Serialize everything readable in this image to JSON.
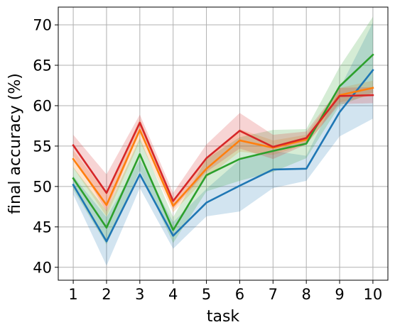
{
  "chart_data": {
    "type": "line",
    "title": "",
    "xlabel": "task",
    "ylabel": "final accuracy (%)",
    "x": [
      1,
      2,
      3,
      4,
      5,
      6,
      7,
      8,
      9,
      10
    ],
    "xlim": [
      0.55,
      10.45
    ],
    "ylim": [
      38.4,
      72.2
    ],
    "xticks": [
      "1",
      "2",
      "3",
      "4",
      "5",
      "6",
      "7",
      "8",
      "9",
      "10"
    ],
    "yticks": [
      40,
      45,
      50,
      55,
      60,
      65,
      70
    ],
    "grid": true,
    "legend": "none",
    "series": [
      {
        "color": "#1f77b4",
        "values": [
          50.2,
          43.2,
          51.5,
          43.9,
          48.0,
          50.1,
          52.1,
          52.2,
          59.2,
          64.4
        ],
        "lower": [
          49.0,
          40.2,
          49.8,
          42.3,
          46.3,
          46.9,
          49.8,
          50.7,
          56.2,
          58.4
        ],
        "upper": [
          51.3,
          46.2,
          53.3,
          45.6,
          49.7,
          53.3,
          54.4,
          53.8,
          62.1,
          70.3
        ]
      },
      {
        "color": "#ff7f0e",
        "values": [
          53.4,
          47.7,
          57.0,
          47.6,
          52.2,
          55.7,
          54.8,
          55.8,
          61.3,
          62.2
        ],
        "lower": [
          52.3,
          46.3,
          55.6,
          46.8,
          51.1,
          54.3,
          53.9,
          55.2,
          60.4,
          61.3
        ],
        "upper": [
          54.5,
          49.1,
          58.4,
          48.4,
          53.3,
          57.1,
          55.7,
          56.4,
          62.2,
          63.1
        ]
      },
      {
        "color": "#2ca02c",
        "values": [
          51.0,
          44.9,
          54.0,
          44.6,
          51.4,
          53.4,
          54.4,
          55.3,
          62.4,
          66.3
        ],
        "lower": [
          49.6,
          42.8,
          52.0,
          43.0,
          49.4,
          50.7,
          51.8,
          53.5,
          60.0,
          61.6
        ],
        "upper": [
          52.4,
          47.0,
          56.0,
          46.2,
          53.4,
          56.1,
          57.0,
          57.1,
          64.8,
          71.0
        ]
      },
      {
        "color": "#d62728",
        "values": [
          55.1,
          49.2,
          57.9,
          48.2,
          53.5,
          56.9,
          54.9,
          56.0,
          61.2,
          61.3
        ],
        "lower": [
          53.8,
          46.9,
          56.9,
          47.2,
          51.8,
          54.7,
          53.4,
          55.2,
          60.2,
          60.3
        ],
        "upper": [
          56.4,
          51.5,
          58.9,
          49.2,
          55.2,
          59.1,
          56.4,
          56.8,
          62.2,
          62.3
        ]
      }
    ]
  }
}
